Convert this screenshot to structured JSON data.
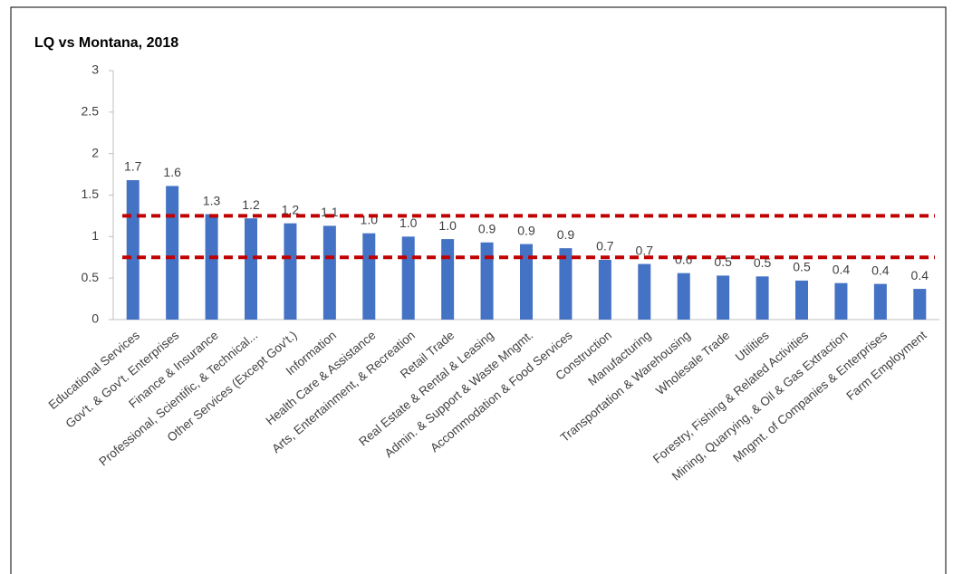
{
  "chart_data": {
    "type": "bar",
    "title": "LQ vs Montana, 2018",
    "categories": [
      "Educational Services",
      "Gov't. & Gov't. Enterprises",
      "Finance & Insurance",
      "Professional, Scientific, & Technical...",
      "Other Services (Except Gov't.)",
      "Information",
      "Health Care & Assistance",
      "Arts, Entertainment, & Recreation",
      "Retail Trade",
      "Real Estate & Rental & Leasing",
      "Admin. & Support & Waste Mngmt.",
      "Accommodation & Food Services",
      "Construction",
      "Manufacturing",
      "Transportation & Warehousing",
      "Wholesale Trade",
      "Utilities",
      "Forestry, Fishing & Related Activities",
      "Mining, Quarrying, & Oil & Gas Extraction",
      "Mngmt. of Companies & Enterprises",
      "Farm Employment"
    ],
    "values": [
      1.68,
      1.61,
      1.27,
      1.22,
      1.16,
      1.13,
      1.04,
      1.0,
      0.97,
      0.93,
      0.91,
      0.86,
      0.72,
      0.67,
      0.56,
      0.53,
      0.52,
      0.47,
      0.44,
      0.43,
      0.37
    ],
    "value_labels": [
      "1.7",
      "1.6",
      "1.3",
      "1.2",
      "1.2",
      "1.1",
      "1.0",
      "1.0",
      "1.0",
      "0.9",
      "0.9",
      "0.9",
      "0.7",
      "0.7",
      "0.6",
      "0.5",
      "0.5",
      "0.5",
      "0.4",
      "0.4",
      "0.4"
    ],
    "color": "#4472c4",
    "ylim": [
      0,
      3
    ],
    "yticks": [
      0,
      0.5,
      1,
      1.5,
      2,
      2.5,
      3
    ],
    "grid": false,
    "reference_lines": {
      "values": [
        1.25,
        0.75
      ],
      "color": "#c00000"
    }
  }
}
